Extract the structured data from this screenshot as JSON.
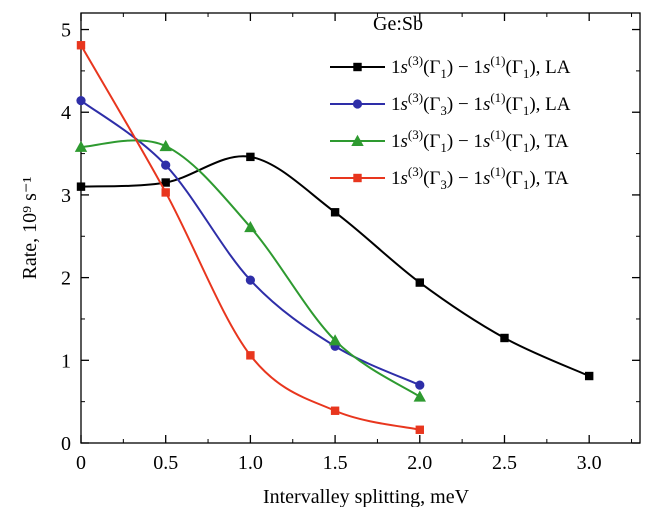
{
  "chart_data": {
    "type": "line",
    "annotation": "Ge:Sb",
    "xlabel": "Intervalley splitting, meV",
    "ylabel": "Rate, 10⁹ s⁻¹",
    "xlim": [
      0,
      3.3
    ],
    "ylim": [
      0,
      5.2
    ],
    "xticks": [
      0,
      0.5,
      1.0,
      1.5,
      2.0,
      2.5,
      3.0
    ],
    "xtick_labels": [
      "0",
      "0.5",
      "1.0",
      "1.5",
      "2.0",
      "2.5",
      "3.0"
    ],
    "yticks": [
      0,
      1,
      2,
      3,
      4,
      5
    ],
    "ytick_labels": [
      "0",
      "1",
      "2",
      "3",
      "4",
      "5"
    ],
    "grid": false,
    "legend_position": "top-right",
    "series": [
      {
        "name": "1s(3)(Γ1) − 1s(1)(Γ1), LA",
        "legend": {
          "g1": "3",
          "a": "1",
          "g2": "1",
          "b": "1",
          "mode": "LA"
        },
        "color": "#000000",
        "marker": "square",
        "x": [
          0,
          0.5,
          1.0,
          1.5,
          2.0,
          2.5,
          3.0
        ],
        "y": [
          3.1,
          3.15,
          3.46,
          2.79,
          1.94,
          1.27,
          0.81
        ]
      },
      {
        "name": "1s(3)(Γ3) − 1s(1)(Γ1), LA",
        "legend": {
          "g1": "3",
          "a": "3",
          "g2": "1",
          "b": "1",
          "mode": "LA"
        },
        "color": "#2e2ea8",
        "marker": "circle",
        "x": [
          0,
          0.5,
          1.0,
          1.5,
          2.0
        ],
        "y": [
          4.14,
          3.36,
          1.97,
          1.17,
          0.7
        ]
      },
      {
        "name": "1s(3)(Γ1) − 1s(1)(Γ1), TA",
        "legend": {
          "g1": "3",
          "a": "1",
          "g2": "1",
          "b": "1",
          "mode": "TA"
        },
        "color": "#2e9a30",
        "marker": "triangle",
        "x": [
          0,
          0.5,
          1.0,
          1.5,
          2.0
        ],
        "y": [
          3.58,
          3.59,
          2.61,
          1.24,
          0.56
        ]
      },
      {
        "name": "1s(3)(Γ3) − 1s(1)(Γ1), TA",
        "legend": {
          "g1": "3",
          "a": "3",
          "g2": "1",
          "b": "1",
          "mode": "TA"
        },
        "color": "#e8361e",
        "marker": "square",
        "x": [
          0,
          0.5,
          1.0,
          1.5,
          2.0
        ],
        "y": [
          4.81,
          3.03,
          1.06,
          0.39,
          0.16
        ]
      }
    ]
  }
}
